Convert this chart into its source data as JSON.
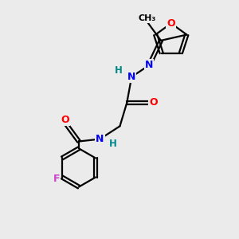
{
  "bg_color": "#ebebeb",
  "bond_color": "#000000",
  "atom_colors": {
    "O": "#ff0000",
    "N": "#0000ff",
    "F": "#cc44cc",
    "H": "#008888",
    "C": "#000000"
  },
  "figsize": [
    3.0,
    3.0
  ],
  "dpi": 100
}
